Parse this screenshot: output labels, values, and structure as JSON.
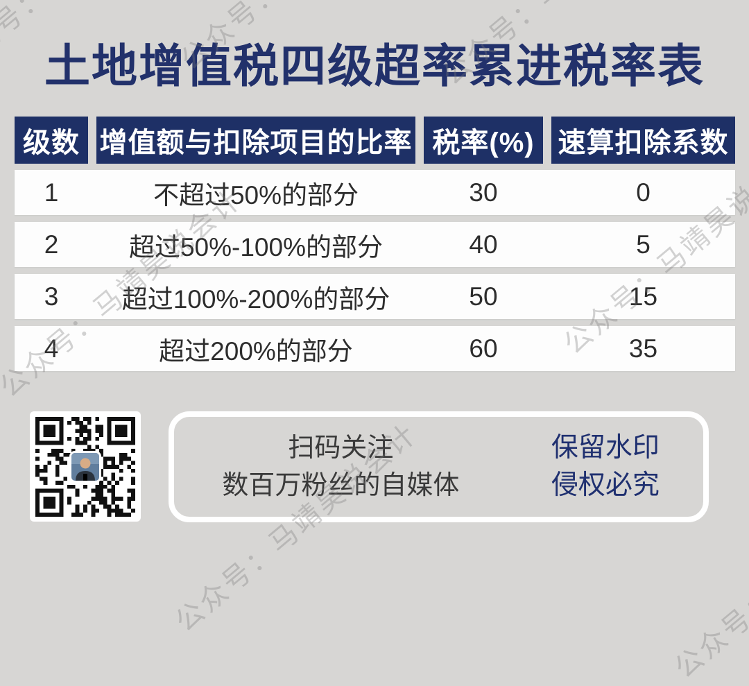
{
  "page": {
    "title": "土地增值税四级超率累进税率表"
  },
  "chart_data": {
    "type": "table",
    "title": "土地增值税四级超率累进税率表",
    "columns": [
      "级数",
      "增值额与扣除项目的比率",
      "税率(%)",
      "速算扣除系数"
    ],
    "rows": [
      [
        "1",
        "不超过50%的部分",
        "30",
        "0"
      ],
      [
        "2",
        "超过50%-100%的部分",
        "40",
        "5"
      ],
      [
        "3",
        "超过100%-200%的部分",
        "50",
        "15"
      ],
      [
        "4",
        "超过200%的部分",
        "60",
        "35"
      ]
    ],
    "layout_hints": {
      "header_style": "navy cells with white bold text, separated by background gaps",
      "row_style": "white full-width bars on light gray background"
    }
  },
  "footer": {
    "qr": "qr-code",
    "scan_line1": "扫码关注",
    "scan_line2": "数百万粉丝的自媒体",
    "notice_line1": "保留水印",
    "notice_line2": "侵权必究"
  },
  "watermark": {
    "text": "公众号：马靖昊说会计"
  },
  "colors": {
    "background": "#d7d6d4",
    "title_navy": "#22316b",
    "header_navy": "#1e3066",
    "row_white": "#fdfdfd",
    "body_text": "#2d2d2d",
    "notice_blue": "#1f3070"
  }
}
